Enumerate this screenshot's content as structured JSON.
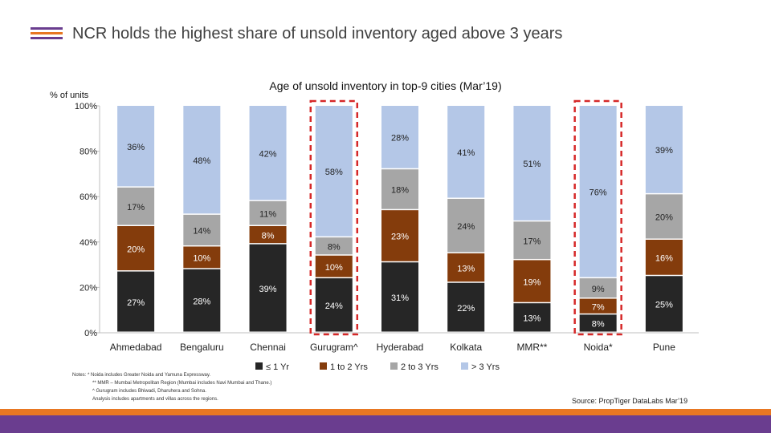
{
  "page": {
    "title": "NCR holds the highest share of unsold inventory aged above 3 years",
    "source": "Source: PropTiger DataLabs Mar’19",
    "notes": [
      "Notes: * Noida includes Greater Noida and Yamuna Expressway.",
      "** MMR – Mumbai Metropolitan Region (Mumbai includes Navi Mumbai and Thane.)",
      "^ Gurugram includes Bhiwadi, Dharuhera and Sohna.",
      "Analysis includes apartments and villas across the regions."
    ]
  },
  "colors": {
    "title_mark": [
      "#6a3d8f",
      "#e87722",
      "#6a3d8f"
    ],
    "footer_orange": "#e87722",
    "footer_purple": "#6a3d8f",
    "highlight": "#d62828"
  },
  "chart_data": {
    "type": "bar",
    "stacked": true,
    "title": "Age of unsold inventory in top-9 cities (Mar’19)",
    "ylabel": "% of units",
    "ylim": [
      0,
      100
    ],
    "yticks": [
      "0%",
      "20%",
      "40%",
      "60%",
      "80%",
      "100%"
    ],
    "categories": [
      "Ahmedabad",
      "Bengaluru",
      "Chennai",
      "Gurugram^",
      "Hyderabad",
      "Kolkata",
      "MMR**",
      "Noida*",
      "Pune"
    ],
    "highlighted": [
      "Gurugram^",
      "Noida*"
    ],
    "series": [
      {
        "name": "≤ 1 Yr",
        "color": "#262626",
        "values": [
          27,
          28,
          39,
          24,
          31,
          22,
          13,
          8,
          25
        ],
        "labels": [
          "27%",
          "28%",
          "39%",
          "24%",
          "31%",
          "22%",
          "13%",
          "8%",
          "25%"
        ]
      },
      {
        "name": "1 to 2 Yrs",
        "color": "#843c0c",
        "values": [
          20,
          10,
          8,
          10,
          23,
          13,
          19,
          7,
          16
        ],
        "labels": [
          "20%",
          "10%",
          "8%",
          "10%",
          "23%",
          "13%",
          "19%",
          "7%",
          "16%"
        ]
      },
      {
        "name": "2 to 3 Yrs",
        "color": "#a6a6a6",
        "values": [
          17,
          14,
          11,
          8,
          18,
          24,
          17,
          9,
          20
        ],
        "labels": [
          "17%",
          "14%",
          "11%",
          "8%",
          "18%",
          "24%",
          "17%",
          "9%",
          "20%"
        ]
      },
      {
        "name": "> 3 Yrs",
        "color": "#b4c7e7",
        "values": [
          36,
          48,
          42,
          58,
          28,
          41,
          51,
          76,
          39
        ],
        "labels": [
          "36%",
          "48%",
          "42%",
          "58%",
          "28%",
          "41%",
          "51%",
          "76%",
          "39%"
        ]
      }
    ]
  }
}
